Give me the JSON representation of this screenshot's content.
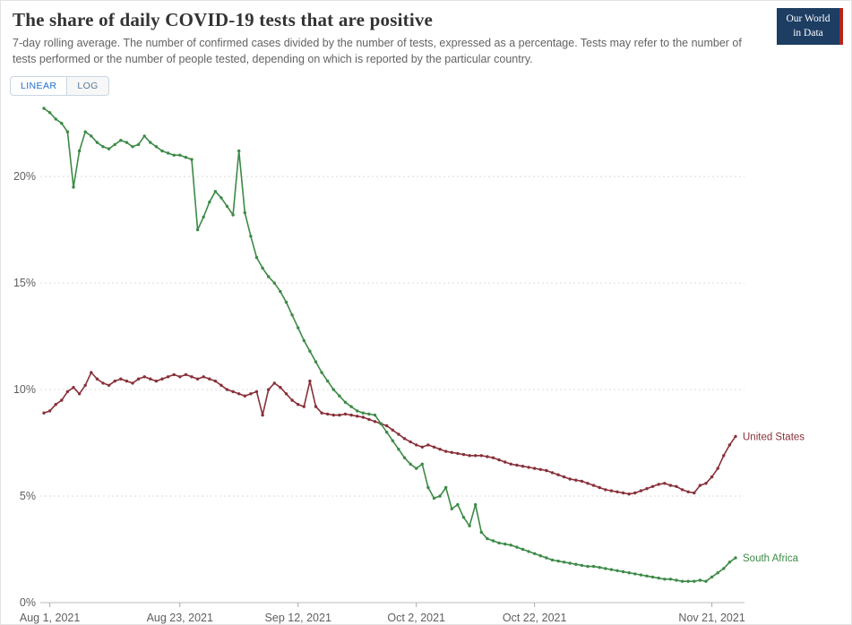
{
  "header": {
    "title": "The share of daily COVID-19 tests that are positive",
    "subtitle": "7-day rolling average. The number of confirmed cases divided by the number of tests, expressed as a percentage. Tests may refer to the number of tests performed or the number of people tested, depending on which is reported by the particular country."
  },
  "logo": {
    "line1": "Our World",
    "line2": "in Data",
    "bg_color": "#1d3d63",
    "accent_color": "#b62419"
  },
  "controls": {
    "options": [
      {
        "label": "LINEAR",
        "active": true
      },
      {
        "label": "LOG",
        "active": false
      }
    ],
    "active_color": "#2271d1"
  },
  "chart_data": {
    "type": "line",
    "title": "The share of daily COVID-19 tests that are positive",
    "xlabel": "",
    "ylabel": "",
    "grid": true,
    "legend_position": "end-of-line-labels",
    "ylim": [
      0,
      23.2
    ],
    "x_unit": "day_index",
    "y_axis": {
      "ticks": [
        {
          "label": "0%",
          "value": 0
        },
        {
          "label": "5%",
          "value": 5
        },
        {
          "label": "10%",
          "value": 10
        },
        {
          "label": "15%",
          "value": 15
        },
        {
          "label": "20%",
          "value": 20
        }
      ]
    },
    "x_axis": {
      "ticks": [
        {
          "label": "Aug 1, 2021",
          "day": 1
        },
        {
          "label": "Aug 23, 2021",
          "day": 23
        },
        {
          "label": "Sep 12, 2021",
          "day": 43
        },
        {
          "label": "Oct 2, 2021",
          "day": 63
        },
        {
          "label": "Oct 22, 2021",
          "day": 83
        },
        {
          "label": "Nov 21, 2021",
          "day": 113
        }
      ]
    },
    "series": [
      {
        "name": "United States",
        "color": "#883039",
        "values": [
          8.9,
          9.0,
          9.3,
          9.5,
          9.9,
          10.1,
          9.8,
          10.2,
          10.8,
          10.5,
          10.3,
          10.2,
          10.4,
          10.5,
          10.4,
          10.3,
          10.5,
          10.6,
          10.5,
          10.4,
          10.5,
          10.6,
          10.7,
          10.6,
          10.7,
          10.6,
          10.5,
          10.6,
          10.5,
          10.4,
          10.2,
          10.0,
          9.9,
          9.8,
          9.7,
          9.8,
          9.9,
          8.8,
          10.0,
          10.3,
          10.1,
          9.8,
          9.5,
          9.3,
          9.2,
          10.4,
          9.2,
          8.9,
          8.85,
          8.8,
          8.8,
          8.85,
          8.8,
          8.75,
          8.7,
          8.6,
          8.5,
          8.4,
          8.3,
          8.1,
          7.9,
          7.7,
          7.55,
          7.4,
          7.3,
          7.4,
          7.3,
          7.2,
          7.1,
          7.05,
          7.0,
          6.95,
          6.9,
          6.9,
          6.9,
          6.85,
          6.8,
          6.7,
          6.6,
          6.5,
          6.45,
          6.4,
          6.35,
          6.3,
          6.25,
          6.2,
          6.1,
          6.0,
          5.9,
          5.8,
          5.75,
          5.7,
          5.6,
          5.5,
          5.4,
          5.3,
          5.25,
          5.2,
          5.15,
          5.1,
          5.15,
          5.25,
          5.35,
          5.45,
          5.55,
          5.6,
          5.5,
          5.45,
          5.3,
          5.2,
          5.15,
          5.5,
          5.6,
          5.9,
          6.3,
          6.9,
          7.4,
          7.8
        ]
      },
      {
        "name": "South Africa",
        "color": "#3c8a46",
        "values": [
          23.2,
          23.0,
          22.7,
          22.5,
          22.1,
          19.5,
          21.2,
          22.1,
          21.9,
          21.6,
          21.4,
          21.3,
          21.5,
          21.7,
          21.6,
          21.4,
          21.5,
          21.9,
          21.6,
          21.4,
          21.2,
          21.1,
          21.0,
          21.0,
          20.9,
          20.8,
          17.5,
          18.1,
          18.8,
          19.3,
          19.0,
          18.6,
          18.2,
          21.2,
          18.3,
          17.2,
          16.2,
          15.7,
          15.3,
          15.0,
          14.6,
          14.1,
          13.5,
          12.9,
          12.3,
          11.8,
          11.3,
          10.8,
          10.4,
          10.0,
          9.7,
          9.4,
          9.2,
          9.0,
          8.9,
          8.85,
          8.8,
          8.4,
          8.0,
          7.6,
          7.2,
          6.8,
          6.5,
          6.3,
          6.5,
          5.4,
          4.9,
          5.0,
          5.4,
          4.4,
          4.6,
          4.0,
          3.6,
          4.6,
          3.3,
          3.0,
          2.9,
          2.8,
          2.75,
          2.7,
          2.6,
          2.5,
          2.4,
          2.3,
          2.2,
          2.1,
          2.0,
          1.95,
          1.9,
          1.85,
          1.8,
          1.75,
          1.7,
          1.7,
          1.65,
          1.6,
          1.55,
          1.5,
          1.45,
          1.4,
          1.35,
          1.3,
          1.25,
          1.2,
          1.15,
          1.1,
          1.1,
          1.05,
          1.0,
          1.0,
          1.0,
          1.05,
          1.0,
          1.2,
          1.4,
          1.6,
          1.9,
          2.1
        ]
      }
    ]
  }
}
